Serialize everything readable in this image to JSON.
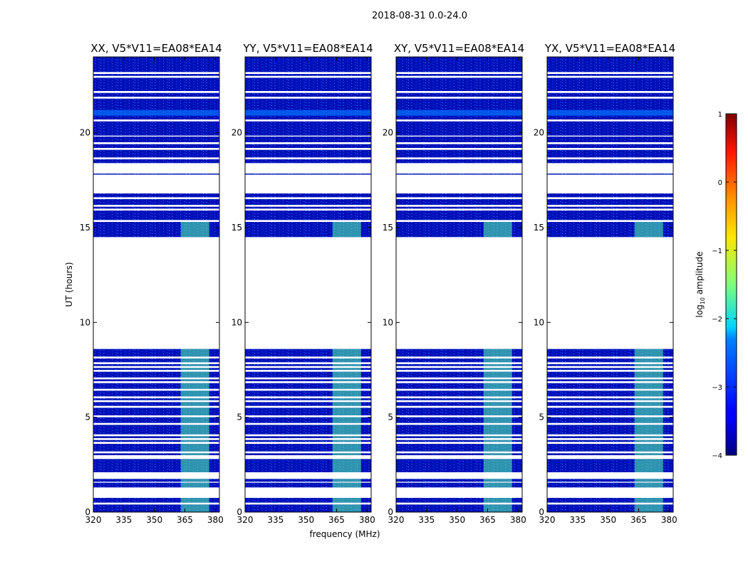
{
  "chart_data": {
    "type": "heatmap",
    "title": "2018-08-31 0.0-24.0",
    "xlabel": "frequency (MHz)",
    "ylabel": "UT (hours)",
    "xlim": [
      320,
      382
    ],
    "ylim": [
      0,
      24
    ],
    "xticks": [
      "320",
      "335",
      "350",
      "365",
      "380"
    ],
    "yticks": [
      "0",
      "5",
      "10",
      "15",
      "20"
    ],
    "panels": [
      {
        "title": "XX, V5*V11=EA08*EA14"
      },
      {
        "title": "YY, V5*V11=EA08*EA14"
      },
      {
        "title": "XY, V5*V11=EA08*EA14"
      },
      {
        "title": "YX, V5*V11=EA08*EA14"
      }
    ],
    "colorbar": {
      "label": "log10 amplitude",
      "label_base": "log",
      "label_sub": "10",
      "label_rest": " amplitude",
      "range": [
        -4,
        1
      ],
      "ticks": [
        "1",
        "0",
        "−1",
        "−2",
        "−3",
        "−4"
      ],
      "colormap": "jet"
    },
    "data_bands_hours": [
      [
        0.0,
        0.4
      ],
      [
        0.5,
        0.75
      ],
      [
        1.3,
        1.55
      ],
      [
        1.6,
        1.75
      ],
      [
        2.1,
        2.8
      ],
      [
        3.0,
        3.1
      ],
      [
        3.2,
        3.6
      ],
      [
        3.7,
        3.8
      ],
      [
        3.9,
        4.0
      ],
      [
        4.1,
        4.6
      ],
      [
        4.7,
        5.0
      ],
      [
        5.1,
        5.5
      ],
      [
        5.6,
        5.8
      ],
      [
        5.9,
        6.0
      ],
      [
        6.1,
        6.4
      ],
      [
        6.5,
        6.8
      ],
      [
        6.9,
        7.0
      ],
      [
        7.1,
        7.4
      ],
      [
        7.5,
        7.6
      ],
      [
        7.7,
        7.8
      ],
      [
        7.9,
        8.1
      ],
      [
        8.2,
        8.6
      ],
      [
        14.5,
        15.3
      ],
      [
        15.4,
        15.9
      ],
      [
        16.0,
        16.1
      ],
      [
        16.2,
        16.5
      ],
      [
        16.6,
        16.8
      ],
      [
        17.8,
        17.85
      ],
      [
        18.4,
        18.6
      ],
      [
        18.7,
        19.1
      ],
      [
        19.2,
        19.4
      ],
      [
        19.5,
        19.8
      ],
      [
        19.85,
        20.6
      ],
      [
        20.7,
        21.8
      ],
      [
        21.9,
        22.1
      ],
      [
        22.2,
        22.9
      ],
      [
        23.0,
        23.1
      ],
      [
        23.2,
        24.0
      ]
    ],
    "rfi_freq_range_mhz": [
      363,
      377
    ],
    "color_scale_values": {
      "background": -3.5,
      "rfi": -1.7,
      "burst": -2.8
    }
  }
}
